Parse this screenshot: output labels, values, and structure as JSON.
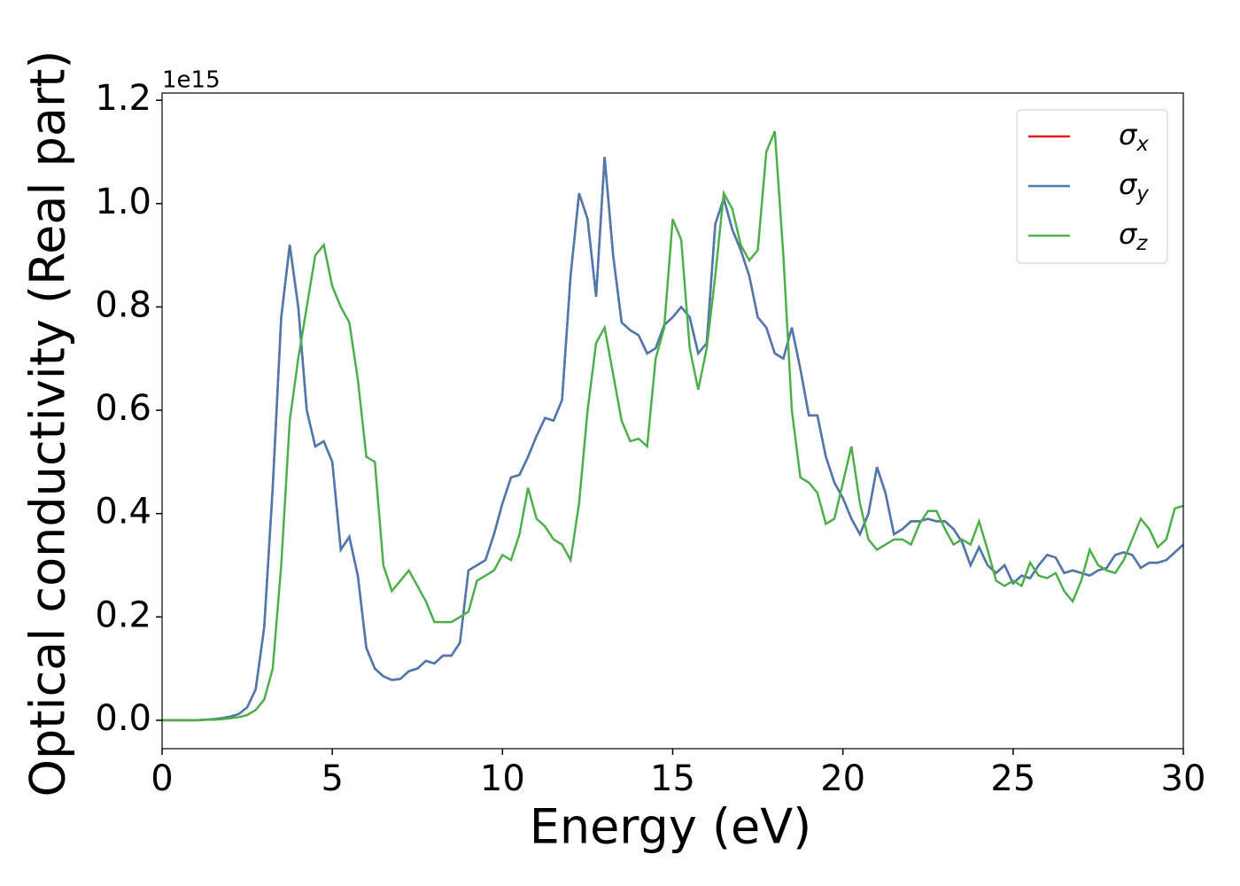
{
  "chart_data": {
    "type": "line",
    "offset_text": "1e15",
    "xlabel": "Energy (eV)",
    "ylabel": "Optical conductivity (Real part)",
    "x": [
      0,
      0.25,
      0.5,
      0.75,
      1,
      1.25,
      1.5,
      1.75,
      2,
      2.25,
      2.5,
      2.75,
      3,
      3.25,
      3.5,
      3.75,
      4,
      4.25,
      4.5,
      4.75,
      5,
      5.25,
      5.5,
      5.75,
      6,
      6.25,
      6.5,
      6.75,
      7,
      7.25,
      7.5,
      7.75,
      8,
      8.25,
      8.5,
      8.75,
      9,
      9.25,
      9.5,
      9.75,
      10,
      10.25,
      10.5,
      10.75,
      11,
      11.25,
      11.5,
      11.75,
      12,
      12.25,
      12.5,
      12.75,
      13,
      13.25,
      13.5,
      13.75,
      14,
      14.25,
      14.5,
      14.75,
      15,
      15.25,
      15.5,
      15.75,
      16,
      16.25,
      16.5,
      16.75,
      17,
      17.25,
      17.5,
      17.75,
      18,
      18.25,
      18.5,
      18.75,
      19,
      19.25,
      19.5,
      19.75,
      20,
      20.25,
      20.5,
      20.75,
      21,
      21.25,
      21.5,
      21.75,
      22,
      22.25,
      22.5,
      22.75,
      23,
      23.25,
      23.5,
      23.75,
      24,
      24.25,
      24.5,
      24.75,
      25,
      25.25,
      25.5,
      25.75,
      26,
      26.25,
      26.5,
      26.75,
      27,
      27.25,
      27.5,
      27.75,
      28,
      28.25,
      28.5,
      28.75,
      29,
      29.25,
      29.5,
      29.75,
      30
    ],
    "series": [
      {
        "name": "σx",
        "color": "#e41a1c",
        "values": [
          0,
          0,
          0,
          0,
          0,
          0.001,
          0.002,
          0.004,
          0.007,
          0.012,
          0.025,
          0.06,
          0.18,
          0.45,
          0.78,
          0.92,
          0.8,
          0.6,
          0.53,
          0.54,
          0.5,
          0.33,
          0.355,
          0.28,
          0.14,
          0.1,
          0.085,
          0.078,
          0.08,
          0.095,
          0.1,
          0.115,
          0.11,
          0.125,
          0.125,
          0.15,
          0.29,
          0.3,
          0.31,
          0.36,
          0.42,
          0.47,
          0.475,
          0.51,
          0.55,
          0.585,
          0.58,
          0.62,
          0.86,
          1.02,
          0.97,
          0.82,
          1.09,
          0.9,
          0.77,
          0.755,
          0.745,
          0.71,
          0.72,
          0.765,
          0.78,
          0.8,
          0.78,
          0.71,
          0.73,
          0.96,
          1.01,
          0.95,
          0.91,
          0.86,
          0.78,
          0.76,
          0.71,
          0.7,
          0.76,
          0.68,
          0.59,
          0.59,
          0.51,
          0.46,
          0.43,
          0.39,
          0.36,
          0.4,
          0.49,
          0.44,
          0.36,
          0.37,
          0.385,
          0.385,
          0.39,
          0.385,
          0.385,
          0.37,
          0.345,
          0.3,
          0.335,
          0.3,
          0.285,
          0.3,
          0.265,
          0.28,
          0.275,
          0.3,
          0.32,
          0.315,
          0.285,
          0.29,
          0.285,
          0.28,
          0.29,
          0.295,
          0.32,
          0.325,
          0.32,
          0.295,
          0.305,
          0.305,
          0.31,
          0.325,
          0.34
        ]
      },
      {
        "name": "σy",
        "color": "#4a7ab0",
        "values": [
          0,
          0,
          0,
          0,
          0,
          0.001,
          0.002,
          0.004,
          0.007,
          0.012,
          0.025,
          0.06,
          0.18,
          0.45,
          0.78,
          0.92,
          0.8,
          0.6,
          0.53,
          0.54,
          0.5,
          0.33,
          0.355,
          0.28,
          0.14,
          0.1,
          0.085,
          0.078,
          0.08,
          0.095,
          0.1,
          0.115,
          0.11,
          0.125,
          0.125,
          0.15,
          0.29,
          0.3,
          0.31,
          0.36,
          0.42,
          0.47,
          0.475,
          0.51,
          0.55,
          0.585,
          0.58,
          0.62,
          0.86,
          1.02,
          0.97,
          0.82,
          1.09,
          0.9,
          0.77,
          0.755,
          0.745,
          0.71,
          0.72,
          0.765,
          0.78,
          0.8,
          0.78,
          0.71,
          0.73,
          0.96,
          1.01,
          0.95,
          0.91,
          0.86,
          0.78,
          0.76,
          0.71,
          0.7,
          0.76,
          0.68,
          0.59,
          0.59,
          0.51,
          0.46,
          0.43,
          0.39,
          0.36,
          0.4,
          0.49,
          0.44,
          0.36,
          0.37,
          0.385,
          0.385,
          0.39,
          0.385,
          0.385,
          0.37,
          0.345,
          0.3,
          0.335,
          0.3,
          0.285,
          0.3,
          0.265,
          0.28,
          0.275,
          0.3,
          0.32,
          0.315,
          0.285,
          0.29,
          0.285,
          0.28,
          0.29,
          0.295,
          0.32,
          0.325,
          0.32,
          0.295,
          0.305,
          0.305,
          0.31,
          0.325,
          0.34
        ]
      },
      {
        "name": "σz",
        "color": "#4daf4a",
        "values": [
          0,
          0,
          0,
          0,
          0,
          0.001,
          0.001,
          0.002,
          0.004,
          0.006,
          0.01,
          0.02,
          0.04,
          0.1,
          0.3,
          0.58,
          0.7,
          0.8,
          0.9,
          0.92,
          0.84,
          0.8,
          0.77,
          0.66,
          0.51,
          0.5,
          0.3,
          0.25,
          0.27,
          0.29,
          0.26,
          0.23,
          0.19,
          0.19,
          0.19,
          0.2,
          0.21,
          0.27,
          0.28,
          0.29,
          0.32,
          0.31,
          0.36,
          0.45,
          0.39,
          0.375,
          0.35,
          0.34,
          0.31,
          0.42,
          0.6,
          0.73,
          0.76,
          0.67,
          0.58,
          0.54,
          0.545,
          0.53,
          0.7,
          0.76,
          0.97,
          0.93,
          0.72,
          0.64,
          0.72,
          0.86,
          1.02,
          0.99,
          0.92,
          0.89,
          0.91,
          1.1,
          1.14,
          0.9,
          0.6,
          0.47,
          0.46,
          0.44,
          0.38,
          0.39,
          0.46,
          0.53,
          0.42,
          0.35,
          0.33,
          0.34,
          0.35,
          0.35,
          0.34,
          0.38,
          0.405,
          0.405,
          0.37,
          0.34,
          0.35,
          0.34,
          0.385,
          0.33,
          0.27,
          0.26,
          0.27,
          0.26,
          0.305,
          0.28,
          0.275,
          0.285,
          0.25,
          0.23,
          0.27,
          0.33,
          0.3,
          0.29,
          0.285,
          0.31,
          0.35,
          0.39,
          0.37,
          0.335,
          0.35,
          0.41,
          0.415
        ]
      }
    ],
    "xlim": [
      0,
      30
    ],
    "xticks": [
      0,
      5,
      10,
      15,
      20,
      25,
      30
    ],
    "ylim": [
      -0.055,
      1.214
    ],
    "yticks": [
      {
        "value": 0,
        "label": "0.0"
      },
      0.2,
      0.4,
      0.6,
      0.8,
      {
        "value": 1,
        "label": "1.0"
      },
      1.2
    ],
    "legend": "upper right",
    "grid": false
  }
}
